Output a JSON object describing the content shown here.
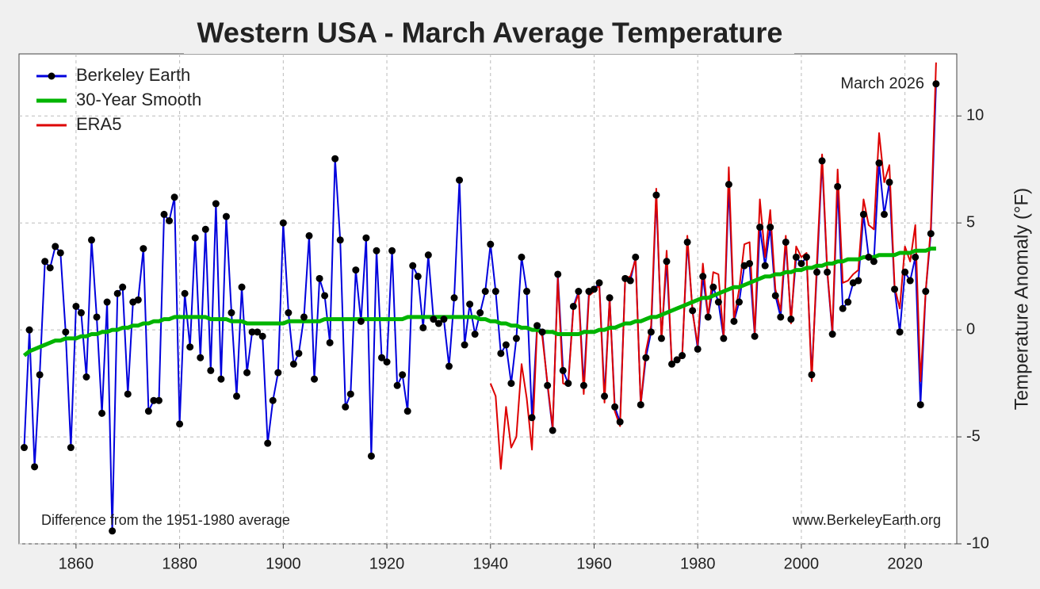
{
  "chart_data": {
    "type": "line",
    "title": "Western USA - March Average Temperature",
    "y_label": "Temperature  Anomaly  (°F)",
    "annotations": [
      "March 2026",
      "Difference from the 1951-1980 average",
      "www.BerkeleyEarth.org"
    ],
    "xlim": [
      1849,
      2030
    ],
    "ylim": [
      -10,
      12.9
    ],
    "xticks": [
      1860,
      1880,
      1900,
      1920,
      1940,
      1960,
      1980,
      2000,
      2020
    ],
    "yticks": [
      -10,
      -5,
      0,
      5,
      10
    ],
    "grid": true,
    "legend": "upper left",
    "x": [
      1850,
      1851,
      1852,
      1853,
      1854,
      1855,
      1856,
      1857,
      1858,
      1859,
      1860,
      1861,
      1862,
      1863,
      1864,
      1865,
      1866,
      1867,
      1868,
      1869,
      1870,
      1871,
      1872,
      1873,
      1874,
      1875,
      1876,
      1877,
      1878,
      1879,
      1880,
      1881,
      1882,
      1883,
      1884,
      1885,
      1886,
      1887,
      1888,
      1889,
      1890,
      1891,
      1892,
      1893,
      1894,
      1895,
      1896,
      1897,
      1898,
      1899,
      1900,
      1901,
      1902,
      1903,
      1904,
      1905,
      1906,
      1907,
      1908,
      1909,
      1910,
      1911,
      1912,
      1913,
      1914,
      1915,
      1916,
      1917,
      1918,
      1919,
      1920,
      1921,
      1922,
      1923,
      1924,
      1925,
      1926,
      1927,
      1928,
      1929,
      1930,
      1931,
      1932,
      1933,
      1934,
      1935,
      1936,
      1937,
      1938,
      1939,
      1940,
      1941,
      1942,
      1943,
      1944,
      1945,
      1946,
      1947,
      1948,
      1949,
      1950,
      1951,
      1952,
      1953,
      1954,
      1955,
      1956,
      1957,
      1958,
      1959,
      1960,
      1961,
      1962,
      1963,
      1964,
      1965,
      1966,
      1967,
      1968,
      1969,
      1970,
      1971,
      1972,
      1973,
      1974,
      1975,
      1976,
      1977,
      1978,
      1979,
      1980,
      1981,
      1982,
      1983,
      1984,
      1985,
      1986,
      1987,
      1988,
      1989,
      1990,
      1991,
      1992,
      1993,
      1994,
      1995,
      1996,
      1997,
      1998,
      1999,
      2000,
      2001,
      2002,
      2003,
      2004,
      2005,
      2006,
      2007,
      2008,
      2009,
      2010,
      2011,
      2012,
      2013,
      2014,
      2015,
      2016,
      2017,
      2018,
      2019,
      2020,
      2021,
      2022,
      2023,
      2024,
      2025,
      2026
    ],
    "series": [
      {
        "name": "Berkeley Earth",
        "color": "#0000dd",
        "markers": true,
        "values": [
          -5.5,
          0.0,
          -6.4,
          -2.1,
          3.2,
          2.9,
          3.9,
          3.6,
          -0.1,
          -5.5,
          1.1,
          0.8,
          -2.2,
          4.2,
          0.6,
          -3.9,
          1.3,
          -9.4,
          1.7,
          2.0,
          -3.0,
          1.3,
          1.4,
          3.8,
          -3.8,
          -3.3,
          -3.3,
          5.4,
          5.1,
          6.2,
          -4.4,
          1.7,
          -0.8,
          4.3,
          -1.3,
          4.7,
          -1.9,
          5.9,
          -2.3,
          5.3,
          0.8,
          -3.1,
          2.0,
          -2.0,
          -0.1,
          -0.1,
          -0.3,
          -5.3,
          -3.3,
          -2.0,
          5.0,
          0.8,
          -1.6,
          -1.1,
          0.6,
          4.4,
          -2.3,
          2.4,
          1.6,
          -0.6,
          8.0,
          4.2,
          -3.6,
          -3.0,
          2.8,
          0.4,
          4.3,
          -5.9,
          3.7,
          -1.3,
          -1.5,
          3.7,
          -2.6,
          -2.1,
          -3.8,
          3.0,
          2.5,
          0.1,
          3.5,
          0.5,
          0.3,
          0.5,
          -1.7,
          1.5,
          7.0,
          -0.7,
          1.2,
          -0.2,
          0.8,
          1.8,
          4.0,
          1.8,
          -1.1,
          -0.7,
          -2.5,
          -0.4,
          3.4,
          1.8,
          -4.1,
          0.2,
          -0.1,
          -2.6,
          -4.7,
          2.6,
          -1.9,
          -2.5,
          1.1,
          1.8,
          -2.6,
          1.8,
          1.9,
          2.2,
          -3.1,
          1.5,
          -3.6,
          -4.3,
          2.4,
          2.3,
          3.4,
          -3.5,
          -1.3,
          -0.1,
          6.3,
          -0.4,
          3.2,
          -1.6,
          -1.4,
          -1.2,
          4.1,
          0.9,
          -0.9,
          2.5,
          0.6,
          2.0,
          1.3,
          -0.4,
          6.8,
          0.4,
          1.3,
          3.0,
          3.1,
          -0.3,
          4.8,
          3.0,
          4.8,
          1.6,
          0.6,
          4.1,
          0.5,
          3.4,
          3.1,
          3.4,
          -2.1,
          2.7,
          7.9,
          2.7,
          -0.2,
          6.7,
          1.0,
          1.3,
          2.2,
          2.3,
          5.4,
          3.4,
          3.2,
          7.8,
          5.4,
          6.9,
          1.9,
          -0.1,
          2.7,
          2.3,
          3.4,
          -3.5,
          1.8,
          4.5,
          11.5
        ]
      },
      {
        "name": "30-Year Smooth",
        "color": "#00b400",
        "values": [
          -1.2,
          -1.0,
          -0.9,
          -0.8,
          -0.7,
          -0.6,
          -0.5,
          -0.5,
          -0.4,
          -0.4,
          -0.4,
          -0.3,
          -0.3,
          -0.2,
          -0.2,
          -0.1,
          -0.1,
          0.0,
          0.0,
          0.1,
          0.1,
          0.2,
          0.2,
          0.3,
          0.3,
          0.4,
          0.4,
          0.5,
          0.5,
          0.6,
          0.6,
          0.6,
          0.6,
          0.6,
          0.6,
          0.6,
          0.5,
          0.5,
          0.5,
          0.5,
          0.4,
          0.4,
          0.4,
          0.3,
          0.3,
          0.3,
          0.3,
          0.3,
          0.3,
          0.3,
          0.3,
          0.4,
          0.4,
          0.4,
          0.4,
          0.4,
          0.4,
          0.4,
          0.5,
          0.5,
          0.5,
          0.5,
          0.5,
          0.5,
          0.5,
          0.5,
          0.5,
          0.5,
          0.5,
          0.5,
          0.5,
          0.5,
          0.5,
          0.5,
          0.6,
          0.6,
          0.6,
          0.6,
          0.6,
          0.6,
          0.6,
          0.6,
          0.6,
          0.6,
          0.6,
          0.6,
          0.6,
          0.6,
          0.5,
          0.5,
          0.4,
          0.4,
          0.3,
          0.3,
          0.2,
          0.2,
          0.1,
          0.1,
          0.0,
          0.0,
          -0.1,
          -0.1,
          -0.1,
          -0.2,
          -0.2,
          -0.2,
          -0.2,
          -0.2,
          -0.1,
          -0.1,
          -0.1,
          0.0,
          0.0,
          0.1,
          0.1,
          0.2,
          0.3,
          0.3,
          0.4,
          0.4,
          0.5,
          0.6,
          0.6,
          0.7,
          0.8,
          0.9,
          1.0,
          1.1,
          1.2,
          1.3,
          1.4,
          1.5,
          1.5,
          1.6,
          1.7,
          1.8,
          1.9,
          2.0,
          2.0,
          2.1,
          2.2,
          2.3,
          2.4,
          2.5,
          2.5,
          2.6,
          2.6,
          2.7,
          2.7,
          2.8,
          2.8,
          2.9,
          2.9,
          3.0,
          3.0,
          3.1,
          3.1,
          3.2,
          3.2,
          3.3,
          3.3,
          3.3,
          3.4,
          3.4,
          3.4,
          3.5,
          3.5,
          3.5,
          3.5,
          3.6,
          3.6,
          3.6,
          3.7,
          3.7,
          3.7,
          3.8,
          3.8
        ]
      },
      {
        "name": "ERA5",
        "color": "#dd0000",
        "values": [
          null,
          null,
          null,
          null,
          null,
          null,
          null,
          null,
          null,
          null,
          null,
          null,
          null,
          null,
          null,
          null,
          null,
          null,
          null,
          null,
          null,
          null,
          null,
          null,
          null,
          null,
          null,
          null,
          null,
          null,
          null,
          null,
          null,
          null,
          null,
          null,
          null,
          null,
          null,
          null,
          null,
          null,
          null,
          null,
          null,
          null,
          null,
          null,
          null,
          null,
          null,
          null,
          null,
          null,
          null,
          null,
          null,
          null,
          null,
          null,
          null,
          null,
          null,
          null,
          null,
          null,
          null,
          null,
          null,
          null,
          null,
          null,
          null,
          null,
          null,
          null,
          null,
          null,
          null,
          null,
          null,
          null,
          null,
          null,
          null,
          null,
          null,
          null,
          null,
          null,
          -2.5,
          -3.1,
          -6.5,
          -3.6,
          -5.5,
          -5.0,
          -1.6,
          -3.2,
          -5.6,
          0.1,
          -0.3,
          -2.5,
          -4.6,
          2.4,
          -2.5,
          -2.6,
          1.0,
          1.7,
          -3.0,
          1.6,
          1.8,
          2.1,
          -3.4,
          1.5,
          -3.8,
          -4.5,
          2.4,
          2.5,
          3.3,
          -3.5,
          -1.0,
          0.2,
          6.6,
          -0.5,
          3.7,
          -1.6,
          -1.4,
          -1.3,
          4.4,
          0.8,
          -0.7,
          3.1,
          0.6,
          2.7,
          2.6,
          -0.4,
          7.6,
          0.5,
          1.9,
          4.0,
          4.1,
          -0.2,
          6.1,
          3.4,
          5.6,
          1.9,
          0.9,
          4.4,
          0.3,
          3.9,
          3.4,
          3.6,
          -2.4,
          3.1,
          8.2,
          2.8,
          -0.1,
          7.5,
          2.2,
          2.3,
          2.6,
          2.8,
          6.1,
          4.9,
          4.7,
          9.2,
          6.9,
          7.7,
          2.0,
          1.0,
          3.9,
          3.2,
          4.9,
          -2.4,
          1.8,
          4.8,
          12.5
        ]
      }
    ]
  }
}
